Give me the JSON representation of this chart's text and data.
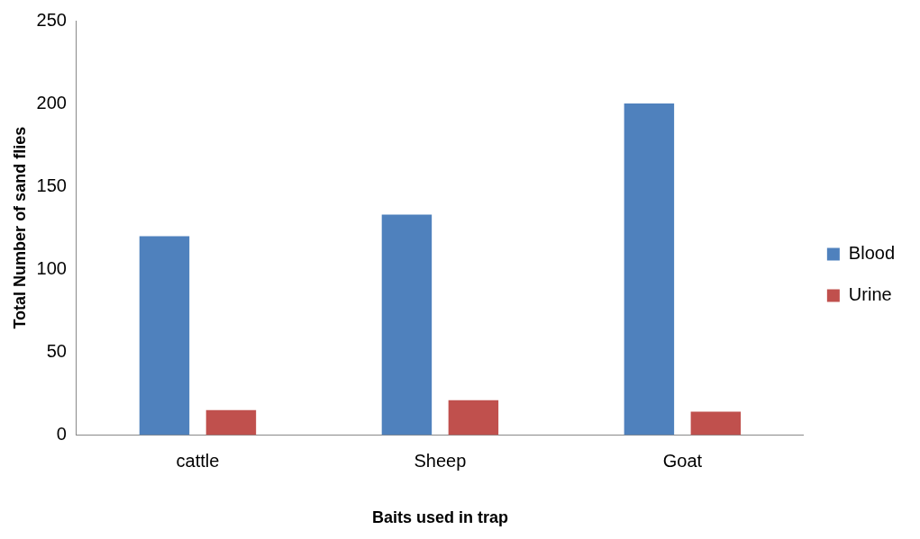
{
  "chart_data": {
    "type": "bar",
    "xlabel": "Baits used in trap",
    "ylabel": "Total Number of sand flies",
    "categories": [
      "cattle",
      "Sheep",
      "Goat"
    ],
    "series": [
      {
        "name": "Blood",
        "color": "#4f81bd",
        "values": [
          120,
          133,
          200
        ]
      },
      {
        "name": "Urine",
        "color": "#c0504d",
        "values": [
          15,
          21,
          14
        ]
      }
    ],
    "ylim": [
      0,
      250
    ],
    "yticks": [
      0,
      50,
      100,
      150,
      200,
      250
    ],
    "grid": false,
    "legend": "right"
  }
}
